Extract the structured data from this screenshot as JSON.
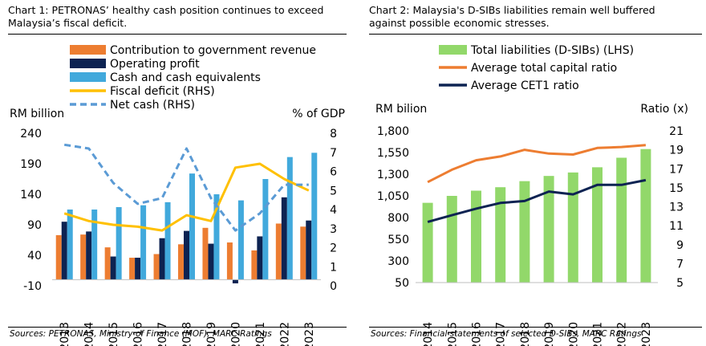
{
  "charts": [
    {
      "title": "Chart 1: PETRONAS’ healthy cash position continues to exceed\nMalaysia’s fiscal deficit.",
      "source": "Sources: PETRONAS, Ministry of Finance (MOF), MARC Ratings",
      "left_unit": "RM billion",
      "right_unit": "% of GDP"
    },
    {
      "title": "Chart 2: Malaysia's D-SIBs liabilities remain well buffered\nagainst possible economic stresses.",
      "source": "Sources: Financial statements of selected D-SIBs, MARC Ratings",
      "left_unit": "RM bilion",
      "right_unit": "Ratio (x)"
    }
  ],
  "chart_data": [
    {
      "type": "bar",
      "title": "Chart 1: PETRONAS’ healthy cash position continues to exceed Malaysia’s fiscal deficit.",
      "categories": [
        "2013",
        "2014",
        "2015",
        "2016",
        "2017",
        "2018",
        "2019",
        "2020",
        "2021",
        "2022",
        "2023"
      ],
      "ylabel": "RM billion",
      "ylim": [
        -10,
        240
      ],
      "yticks": [
        "-10",
        "40",
        "90",
        "140",
        "190",
        "240"
      ],
      "y2label": "% of GDP",
      "y2lim": [
        0,
        8
      ],
      "y2ticks": [
        "0",
        "1",
        "2",
        "3",
        "4",
        "5",
        "6",
        "7",
        "8"
      ],
      "grid": false,
      "legend_placement": "top",
      "series": [
        {
          "name": "Contribution to government revenue",
          "kind": "bar",
          "axis": "left",
          "color": "#ED7D31",
          "values": [
            73,
            74,
            53,
            36,
            42,
            58,
            85,
            61,
            48,
            92,
            87
          ]
        },
        {
          "name": "Operating profit",
          "kind": "bar",
          "axis": "left",
          "color": "#0D2352",
          "values": [
            95,
            79,
            38,
            36,
            68,
            80,
            59,
            -6,
            71,
            135,
            97
          ]
        },
        {
          "name": "Cash and cash equivalents",
          "kind": "bar",
          "axis": "left",
          "color": "#41A9DC",
          "values": [
            115,
            115,
            119,
            122,
            127,
            174,
            140,
            130,
            165,
            201,
            208
          ]
        },
        {
          "name": "Fiscal deficit (RHS)",
          "kind": "line",
          "axis": "right",
          "color": "#FFC000",
          "dashed": false,
          "values": [
            3.8,
            3.4,
            3.2,
            3.1,
            2.9,
            3.7,
            3.4,
            6.2,
            6.4,
            5.6,
            5.0
          ]
        },
        {
          "name": "Net cash (RHS)",
          "kind": "line",
          "axis": "right",
          "color": "#5B9BD5",
          "dashed": true,
          "values": [
            7.4,
            7.2,
            5.4,
            4.3,
            4.6,
            7.2,
            4.6,
            2.9,
            3.8,
            5.3,
            5.3
          ]
        }
      ]
    },
    {
      "type": "bar",
      "title": "Chart 2: Malaysia's D-SIBs liabilities remain well buffered against possible economic stresses.",
      "categories": [
        "2014",
        "2015",
        "2016",
        "2017",
        "2018",
        "2019",
        "2020",
        "2021",
        "2022",
        "2023"
      ],
      "ylabel": "RM bilion",
      "ylim": [
        50,
        1800
      ],
      "yticks": [
        "50",
        "300",
        "550",
        "800",
        "1,050",
        "1,300",
        "1,550",
        "1,800"
      ],
      "y2label": "Ratio (x)",
      "y2lim": [
        5,
        21
      ],
      "y2ticks": [
        "5",
        "7",
        "9",
        "11",
        "13",
        "15",
        "17",
        "19",
        "21"
      ],
      "grid": false,
      "legend_placement": "top",
      "series": [
        {
          "name": "Total liabilities (D-SIBs) (LHS)",
          "kind": "bar",
          "axis": "left",
          "color": "#92D86A",
          "values": [
            970,
            1050,
            1110,
            1150,
            1220,
            1280,
            1320,
            1380,
            1490,
            1590
          ]
        },
        {
          "name": "Average total capital ratio",
          "kind": "line",
          "axis": "right",
          "color": "#ED7D31",
          "dashed": false,
          "values": [
            15.6,
            16.9,
            17.9,
            18.3,
            19.0,
            18.6,
            18.5,
            19.2,
            19.3,
            19.5
          ]
        },
        {
          "name": "Average CET1 ratio",
          "kind": "line",
          "axis": "right",
          "color": "#0D2352",
          "dashed": false,
          "values": [
            11.4,
            12.1,
            12.8,
            13.4,
            13.6,
            14.6,
            14.3,
            15.3,
            15.3,
            15.8
          ]
        }
      ]
    }
  ]
}
